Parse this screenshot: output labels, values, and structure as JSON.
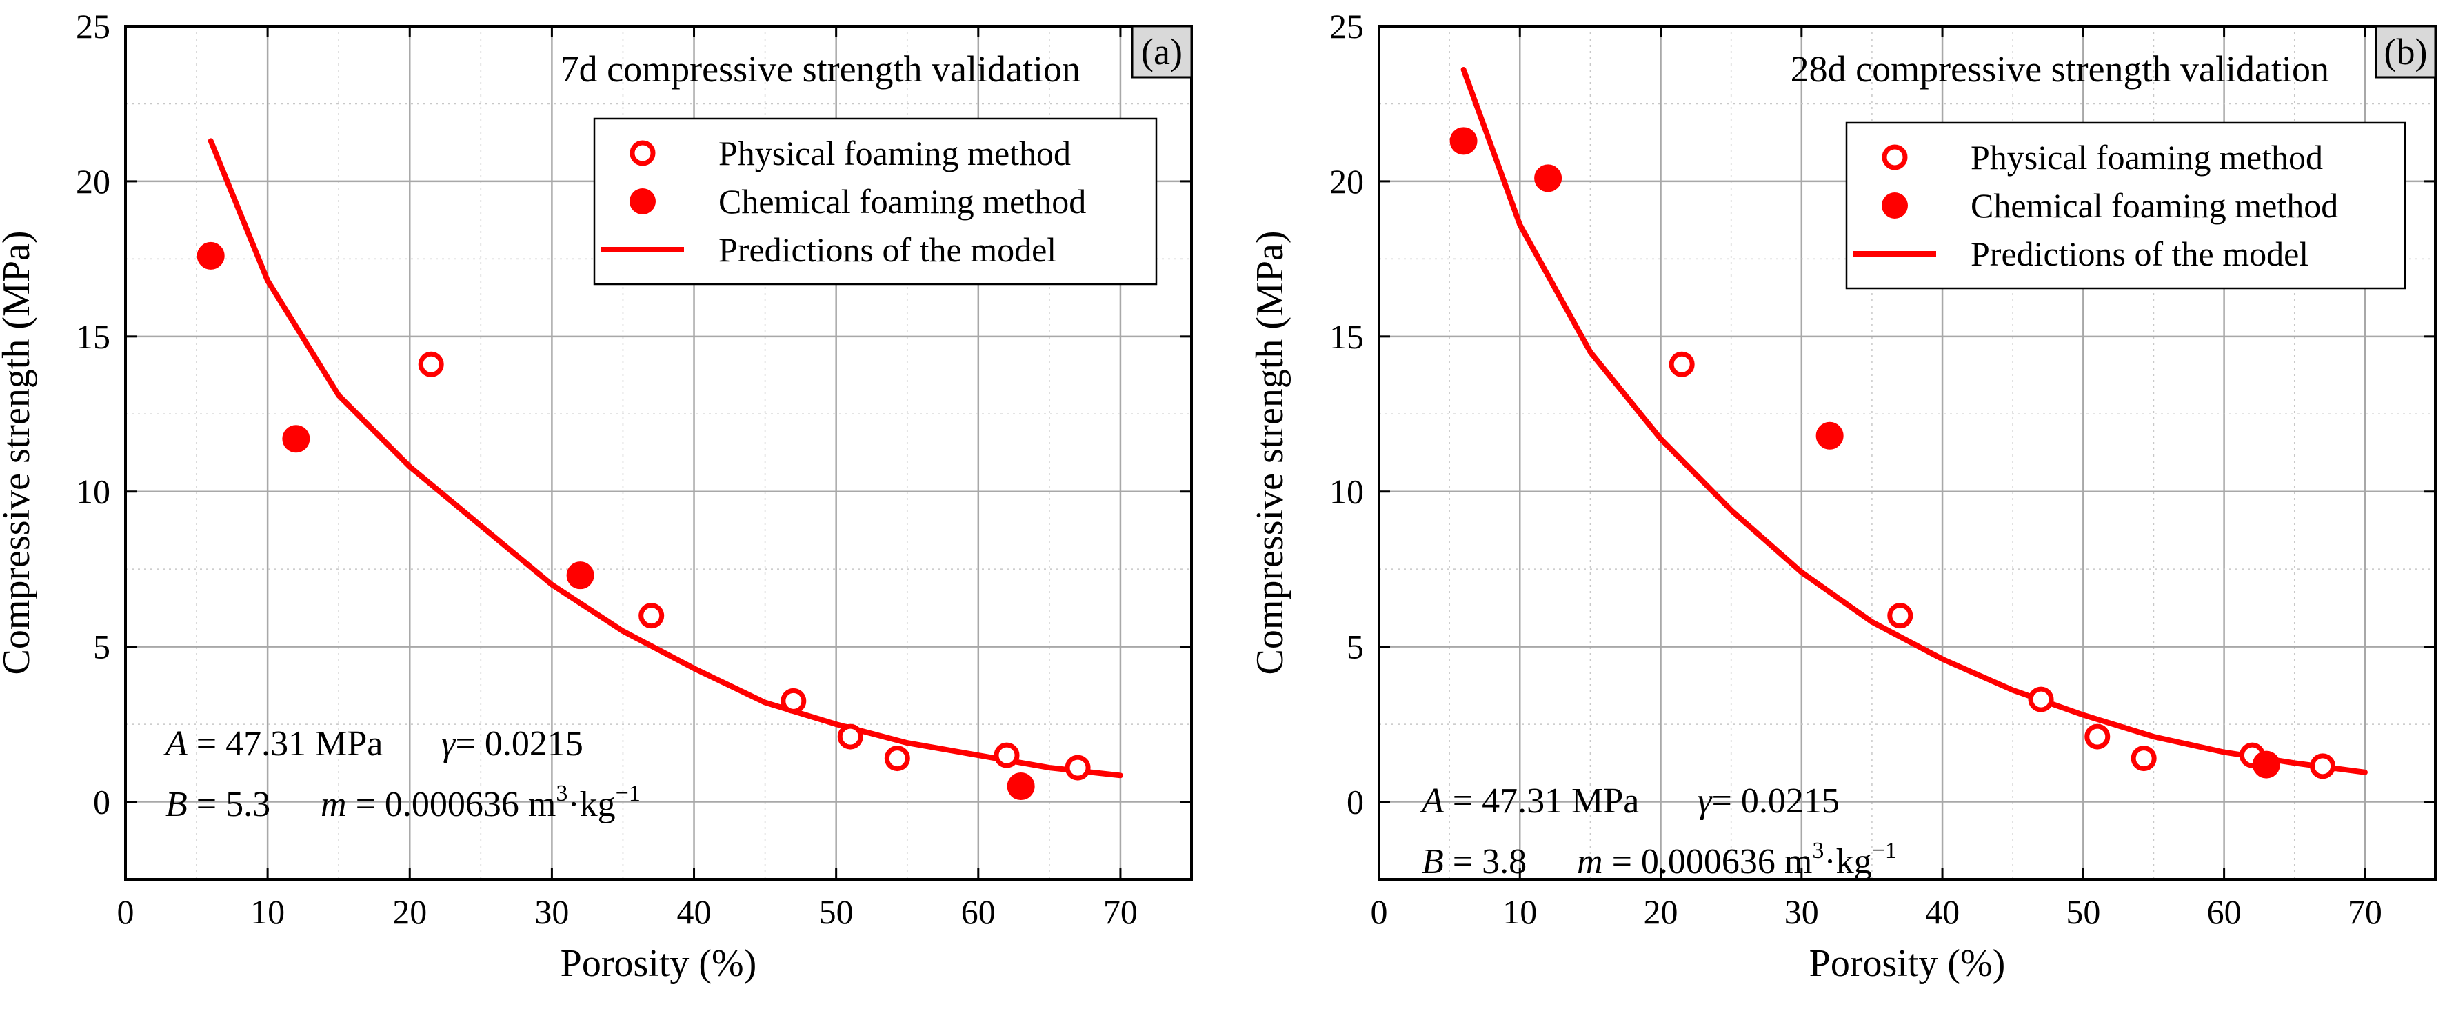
{
  "chart_data": [
    {
      "type": "scatter",
      "panel": "(a)",
      "title": "7d compressive strength validation",
      "xlabel": "Porosity (%)",
      "ylabel": "Compressive strength (MPa)",
      "xlim": [
        0,
        75
      ],
      "ylim": [
        -2.5,
        25
      ],
      "xticks": [
        "0",
        "10",
        "20",
        "30",
        "40",
        "50",
        "60",
        "70"
      ],
      "yticks": [
        "0",
        "5",
        "10",
        "15",
        "20",
        "25"
      ],
      "grid": true,
      "legend_position": "top-right",
      "series": [
        {
          "name": "Physical foaming method",
          "marker": "open-circle",
          "color": "#ff0000",
          "x": [
            21.5,
            37,
            47,
            51,
            54.3,
            62,
            67
          ],
          "y": [
            14.1,
            6.0,
            3.25,
            2.1,
            1.4,
            1.5,
            1.1
          ]
        },
        {
          "name": "Chemical foaming method",
          "marker": "filled-circle",
          "color": "#ff0000",
          "x": [
            6,
            12,
            32,
            63
          ],
          "y": [
            17.6,
            11.7,
            7.3,
            0.5
          ]
        },
        {
          "name": "Predictions of the model",
          "marker": "line",
          "color": "#ff0000",
          "x": [
            6,
            10,
            15,
            20,
            25,
            30,
            35,
            40,
            45,
            50,
            55,
            60,
            65,
            70
          ],
          "y": [
            21.3,
            16.8,
            13.1,
            10.8,
            8.9,
            7.0,
            5.5,
            4.3,
            3.2,
            2.5,
            1.9,
            1.5,
            1.1,
            0.85
          ]
        }
      ],
      "params": {
        "A_sym": "A",
        "A_val": "= 47.31 MPa",
        "gamma_sym": "γ",
        "gamma_val": "= 0.0215",
        "B_sym": "B",
        "B_val": "= 5.3",
        "m_sym": "m",
        "m_val": "= 0.000636 m",
        "m_unit_mid": "·kg",
        "m_exp1": "3",
        "m_exp2": "−1"
      }
    },
    {
      "type": "scatter",
      "panel": "(b)",
      "title": "28d compressive strength validation",
      "xlabel": "Porosity (%)",
      "ylabel": "Compressive strength (MPa)",
      "xlim": [
        0,
        75
      ],
      "ylim": [
        -2.5,
        25
      ],
      "xticks": [
        "0",
        "10",
        "20",
        "30",
        "40",
        "50",
        "60",
        "70"
      ],
      "yticks": [
        "0",
        "5",
        "10",
        "15",
        "20",
        "25"
      ],
      "grid": true,
      "legend_position": "top-right",
      "series": [
        {
          "name": "Physical foaming method",
          "marker": "open-circle",
          "color": "#ff0000",
          "x": [
            21.5,
            37,
            47,
            51,
            54.3,
            62,
            67
          ],
          "y": [
            14.1,
            6.0,
            3.3,
            2.1,
            1.4,
            1.5,
            1.15
          ]
        },
        {
          "name": "Chemical foaming method",
          "marker": "filled-circle",
          "color": "#ff0000",
          "x": [
            6,
            12,
            32,
            63
          ],
          "y": [
            21.3,
            20.1,
            11.8,
            1.2
          ]
        },
        {
          "name": "Predictions of the model",
          "marker": "line",
          "color": "#ff0000",
          "x": [
            6,
            10,
            15,
            20,
            25,
            30,
            35,
            40,
            45,
            50,
            55,
            60,
            65,
            70
          ],
          "y": [
            23.6,
            18.6,
            14.5,
            11.7,
            9.4,
            7.4,
            5.8,
            4.6,
            3.6,
            2.8,
            2.1,
            1.6,
            1.25,
            0.95
          ]
        }
      ],
      "params": {
        "A_sym": "A",
        "A_val": "= 47.31 MPa",
        "gamma_sym": "γ",
        "gamma_val": "= 0.0215",
        "B_sym": "B",
        "B_val": "= 3.8",
        "m_sym": "m",
        "m_val": "= 0.000636 m",
        "m_unit_mid": "·kg",
        "m_exp1": "3",
        "m_exp2": "−1"
      }
    }
  ]
}
